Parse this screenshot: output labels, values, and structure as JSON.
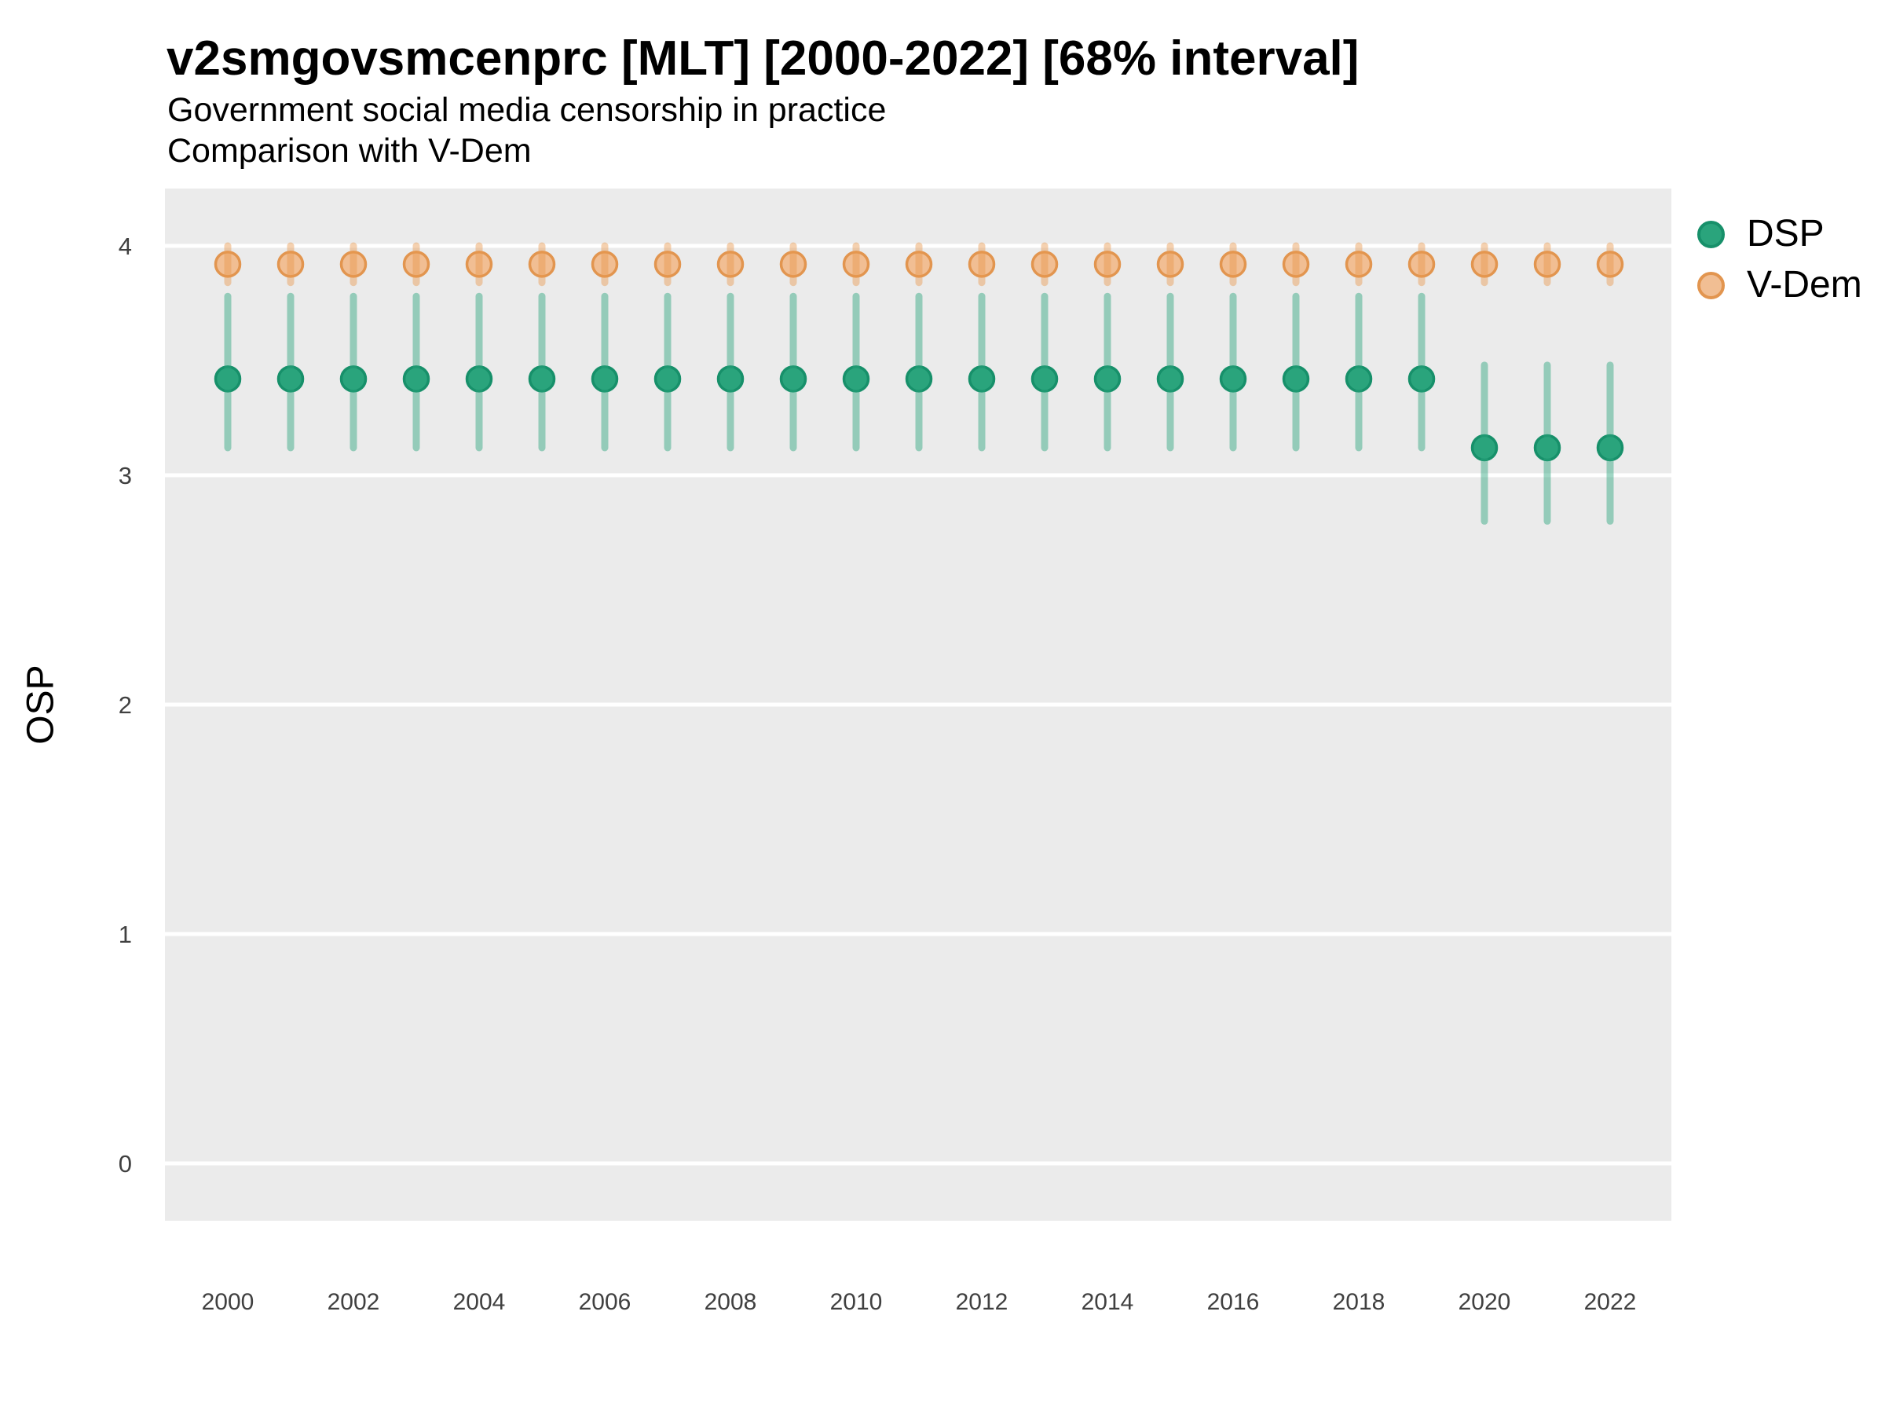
{
  "chart_data": {
    "type": "pointrange",
    "title": "v2smgovsmcenprc [MLT] [2000-2022] [68% interval]",
    "subtitle": "Government social media censorship in practice",
    "subtitle2": "Comparison with V-Dem",
    "ylabel": "OSP",
    "xlabel": "",
    "interval_label": "68% interval",
    "x": [
      2000,
      2001,
      2002,
      2003,
      2004,
      2005,
      2006,
      2007,
      2008,
      2009,
      2010,
      2011,
      2012,
      2013,
      2014,
      2015,
      2016,
      2017,
      2018,
      2019,
      2020,
      2021,
      2022
    ],
    "x_tick_labels": [
      "2000",
      "2002",
      "2004",
      "2006",
      "2008",
      "2010",
      "2012",
      "2014",
      "2016",
      "2018",
      "2020",
      "2022"
    ],
    "x_tick_years": [
      2000,
      2002,
      2004,
      2006,
      2008,
      2010,
      2012,
      2014,
      2016,
      2018,
      2020,
      2022
    ],
    "y_ticks": [
      0,
      1,
      2,
      3,
      4
    ],
    "y_tick_labels": [
      "0",
      "1",
      "2",
      "3",
      "4"
    ],
    "ylim": [
      -0.25,
      4.25
    ],
    "grid": "horizontal-major-only",
    "legend_position": "right",
    "panel_bg": "#EBEBEB",
    "grid_color": "#FFFFFF",
    "axis_text_color": "#404040",
    "series": [
      {
        "name": "V-Dem",
        "point_fill": "#F1BE93",
        "point_stroke": "#E2954F",
        "line_color": "rgba(232,152,80,0.45)",
        "est": [
          3.92,
          3.92,
          3.92,
          3.92,
          3.92,
          3.92,
          3.92,
          3.92,
          3.92,
          3.92,
          3.92,
          3.92,
          3.92,
          3.92,
          3.92,
          3.92,
          3.92,
          3.92,
          3.92,
          3.92,
          3.92,
          3.92,
          3.92
        ],
        "lo": [
          3.84,
          3.84,
          3.84,
          3.84,
          3.84,
          3.84,
          3.84,
          3.84,
          3.84,
          3.84,
          3.84,
          3.84,
          3.84,
          3.84,
          3.84,
          3.84,
          3.84,
          3.84,
          3.84,
          3.84,
          3.84,
          3.84,
          3.84
        ],
        "hi": [
          4.0,
          4.0,
          4.0,
          4.0,
          4.0,
          4.0,
          4.0,
          4.0,
          4.0,
          4.0,
          4.0,
          4.0,
          4.0,
          4.0,
          4.0,
          4.0,
          4.0,
          4.0,
          4.0,
          4.0,
          4.0,
          4.0,
          4.0
        ]
      },
      {
        "name": "DSP",
        "point_fill": "#2AA47C",
        "point_stroke": "#17906A",
        "line_color": "rgba(42,164,124,0.45)",
        "est": [
          3.42,
          3.42,
          3.42,
          3.42,
          3.42,
          3.42,
          3.42,
          3.42,
          3.42,
          3.42,
          3.42,
          3.42,
          3.42,
          3.42,
          3.42,
          3.42,
          3.42,
          3.42,
          3.42,
          3.42,
          3.12,
          3.12,
          3.12
        ],
        "lo": [
          3.12,
          3.12,
          3.12,
          3.12,
          3.12,
          3.12,
          3.12,
          3.12,
          3.12,
          3.12,
          3.12,
          3.12,
          3.12,
          3.12,
          3.12,
          3.12,
          3.12,
          3.12,
          3.12,
          3.12,
          2.8,
          2.8,
          2.8
        ],
        "hi": [
          3.78,
          3.78,
          3.78,
          3.78,
          3.78,
          3.78,
          3.78,
          3.78,
          3.78,
          3.78,
          3.78,
          3.78,
          3.78,
          3.78,
          3.78,
          3.78,
          3.78,
          3.78,
          3.78,
          3.78,
          3.48,
          3.48,
          3.48
        ]
      }
    ],
    "legend": {
      "items": [
        {
          "label": "DSP"
        },
        {
          "label": "V-Dem"
        }
      ]
    }
  }
}
